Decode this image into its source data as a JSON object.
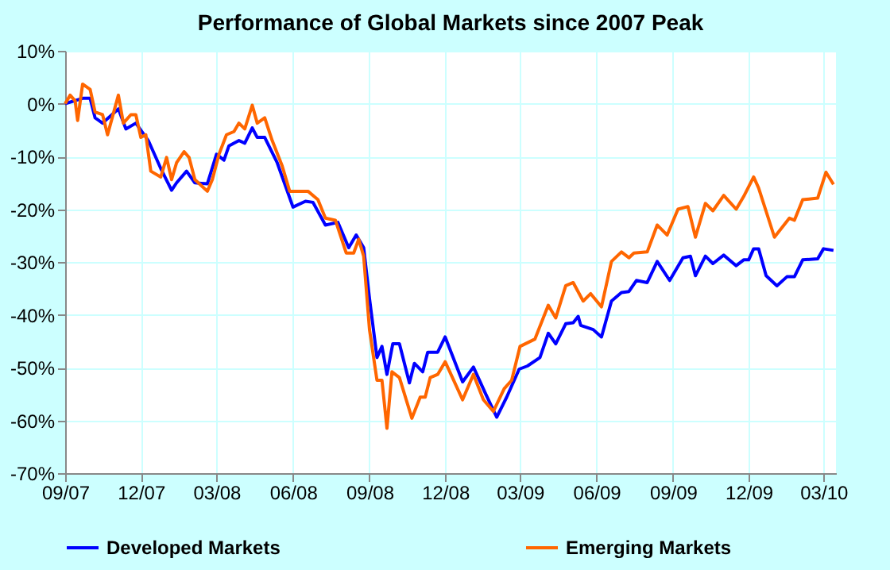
{
  "chart_data": {
    "type": "line",
    "title": "Performance of Global Markets since 2007 Peak",
    "xlim": [
      "2007-09-01",
      "2010-03-16"
    ],
    "xticks": [
      {
        "value": "2007-09",
        "label": "09/07"
      },
      {
        "value": "2007-12",
        "label": "12/07"
      },
      {
        "value": "2008-03",
        "label": "03/08"
      },
      {
        "value": "2008-06",
        "label": "06/08"
      },
      {
        "value": "2008-09",
        "label": "09/08"
      },
      {
        "value": "2008-12",
        "label": "12/08"
      },
      {
        "value": "2009-03",
        "label": "03/09"
      },
      {
        "value": "2009-06",
        "label": "06/09"
      },
      {
        "value": "2009-09",
        "label": "09/09"
      },
      {
        "value": "2009-12",
        "label": "12/09"
      },
      {
        "value": "2010-03",
        "label": "03/10"
      }
    ],
    "ylim": [
      -70,
      10
    ],
    "yticks": [
      {
        "value": -70,
        "label": "-70%"
      },
      {
        "value": -60,
        "label": "-60%"
      },
      {
        "value": -50,
        "label": "-50%"
      },
      {
        "value": -40,
        "label": "-40%"
      },
      {
        "value": -30,
        "label": "-30%"
      },
      {
        "value": -20,
        "label": "-20%"
      },
      {
        "value": -10,
        "label": "-10%"
      },
      {
        "value": 0,
        "label": "0%"
      },
      {
        "value": 10,
        "label": "10%"
      }
    ],
    "grid": true,
    "legend": "bottom",
    "marker": "none",
    "line_style": "solid",
    "series": [
      {
        "name": "Developed Markets",
        "color": "#0000ff",
        "x": [
          "2007-09-01",
          "2007-09-22",
          "2007-10-01",
          "2007-10-07",
          "2007-10-16",
          "2007-11-04",
          "2007-11-13",
          "2007-11-25",
          "2007-12-10",
          "2007-12-25",
          "2008-01-07",
          "2008-01-13",
          "2008-01-25",
          "2008-02-04",
          "2008-02-19",
          "2008-03-01",
          "2008-03-10",
          "2008-03-16",
          "2008-03-28",
          "2008-04-04",
          "2008-04-13",
          "2008-04-19",
          "2008-04-28",
          "2008-05-13",
          "2008-06-01",
          "2008-06-16",
          "2008-06-25",
          "2008-07-10",
          "2008-07-25",
          "2008-08-07",
          "2008-08-16",
          "2008-08-25",
          "2008-09-01",
          "2008-09-10",
          "2008-09-16",
          "2008-09-22",
          "2008-09-29",
          "2008-10-07",
          "2008-10-19",
          "2008-10-25",
          "2008-11-04",
          "2008-11-10",
          "2008-11-22",
          "2008-12-01",
          "2008-12-22",
          "2009-01-04",
          "2009-01-19",
          "2009-02-01",
          "2009-02-13",
          "2009-02-28",
          "2009-03-10",
          "2009-03-25",
          "2009-04-04",
          "2009-04-13",
          "2009-04-25",
          "2009-05-04",
          "2009-05-10",
          "2009-05-13",
          "2009-05-28",
          "2009-06-07",
          "2009-06-19",
          "2009-07-01",
          "2009-07-10",
          "2009-07-19",
          "2009-08-01",
          "2009-08-13",
          "2009-08-28",
          "2009-09-13",
          "2009-09-22",
          "2009-09-28",
          "2009-10-10",
          "2009-10-19",
          "2009-11-01",
          "2009-11-16",
          "2009-11-25",
          "2009-12-01",
          "2009-12-07",
          "2009-12-13",
          "2009-12-22",
          "2010-01-04",
          "2010-01-16",
          "2010-01-25",
          "2010-02-04",
          "2010-02-22",
          "2010-03-01",
          "2010-03-13"
        ],
        "values": [
          0,
          1,
          1,
          -2.7,
          -3.7,
          -1,
          -4.8,
          -3.7,
          -7,
          -12.3,
          -16.4,
          -15,
          -12.8,
          -15,
          -15.2,
          -9.6,
          -10.7,
          -8,
          -7,
          -7.5,
          -4.6,
          -6.4,
          -6.4,
          -11.2,
          -19.6,
          -18.5,
          -18.7,
          -23,
          -22.5,
          -27.3,
          -24.9,
          -27.3,
          -36.9,
          -48.1,
          -46,
          -51.3,
          -45.5,
          -45.5,
          -52.9,
          -49.2,
          -50.8,
          -47.1,
          -47.1,
          -44.2,
          -52.7,
          -49.9,
          -55.1,
          -59.4,
          -55.6,
          -50.3,
          -49.7,
          -48.1,
          -43.5,
          -45.5,
          -41.7,
          -41.5,
          -40.3,
          -42,
          -42.8,
          -44.2,
          -37.4,
          -35.8,
          -35.6,
          -33.5,
          -33.9,
          -29.9,
          -33.5,
          -29.2,
          -28.9,
          -32.6,
          -28.9,
          -30.3,
          -28.7,
          -30.7,
          -29.6,
          -29.6,
          -27.5,
          -27.5,
          -32.6,
          -34.5,
          -32.8,
          -32.8,
          -29.6,
          -29.4,
          -27.5,
          -27.8
        ]
      },
      {
        "name": "Emerging Markets",
        "color": "#ff6600",
        "x": [
          "2007-09-01",
          "2007-09-07",
          "2007-09-13",
          "2007-09-16",
          "2007-09-22",
          "2007-10-01",
          "2007-10-07",
          "2007-10-16",
          "2007-10-22",
          "2007-11-04",
          "2007-11-10",
          "2007-11-19",
          "2007-11-25",
          "2007-12-01",
          "2007-12-07",
          "2007-12-13",
          "2007-12-25",
          "2008-01-01",
          "2008-01-07",
          "2008-01-13",
          "2008-01-22",
          "2008-01-28",
          "2008-02-04",
          "2008-02-19",
          "2008-02-25",
          "2008-03-04",
          "2008-03-13",
          "2008-03-22",
          "2008-03-28",
          "2008-04-04",
          "2008-04-13",
          "2008-04-19",
          "2008-04-28",
          "2008-05-07",
          "2008-05-19",
          "2008-05-28",
          "2008-06-19",
          "2008-07-01",
          "2008-07-10",
          "2008-07-22",
          "2008-08-04",
          "2008-08-13",
          "2008-08-19",
          "2008-08-25",
          "2008-09-01",
          "2008-09-10",
          "2008-09-16",
          "2008-09-22",
          "2008-09-28",
          "2008-10-07",
          "2008-10-22",
          "2008-11-01",
          "2008-11-07",
          "2008-11-13",
          "2008-11-22",
          "2008-12-01",
          "2008-12-22",
          "2009-01-04",
          "2009-01-16",
          "2009-01-28",
          "2009-02-10",
          "2009-02-19",
          "2009-03-01",
          "2009-03-19",
          "2009-04-04",
          "2009-04-13",
          "2009-04-25",
          "2009-05-04",
          "2009-05-16",
          "2009-05-25",
          "2009-06-07",
          "2009-06-19",
          "2009-07-01",
          "2009-07-10",
          "2009-07-16",
          "2009-08-01",
          "2009-08-13",
          "2009-08-25",
          "2009-09-07",
          "2009-09-19",
          "2009-09-28",
          "2009-10-10",
          "2009-10-19",
          "2009-11-01",
          "2009-11-16",
          "2009-11-25",
          "2009-12-07",
          "2009-12-13",
          "2010-01-01",
          "2010-01-19",
          "2010-01-25",
          "2010-02-04",
          "2010-02-22",
          "2010-03-04",
          "2010-03-13"
        ],
        "values": [
          0,
          1.6,
          0.5,
          -3.2,
          3.7,
          2.7,
          -1.6,
          -2.1,
          -5.9,
          1.6,
          -3.7,
          -2.1,
          -2.1,
          -6.4,
          -5.9,
          -12.8,
          -13.9,
          -10.2,
          -14.4,
          -11.2,
          -9.1,
          -10.2,
          -14.4,
          -16.6,
          -14.4,
          -9.6,
          -5.9,
          -5.3,
          -3.7,
          -4.8,
          -0.3,
          -3.7,
          -2.7,
          -7,
          -11.8,
          -16.6,
          -16.6,
          -18.2,
          -21.7,
          -22.1,
          -28.3,
          -28.3,
          -25.7,
          -28.9,
          -42.8,
          -52.4,
          -52.4,
          -61.5,
          -50.8,
          -51.9,
          -59.6,
          -55.6,
          -55.6,
          -51.9,
          -51.3,
          -48.9,
          -56.1,
          -51.3,
          -56.1,
          -58.3,
          -54,
          -52.4,
          -46,
          -44.6,
          -38.2,
          -40.6,
          -34.5,
          -33.9,
          -37.4,
          -36,
          -38.5,
          -29.9,
          -28.1,
          -29.2,
          -28.3,
          -28.1,
          -23,
          -24.9,
          -20,
          -19.5,
          -25.3,
          -18.9,
          -20.3,
          -17.4,
          -20,
          -17.6,
          -13.9,
          -16,
          -25.3,
          -21.7,
          -22.1,
          -18.2,
          -17.9,
          -13,
          -15.3
        ]
      }
    ]
  }
}
